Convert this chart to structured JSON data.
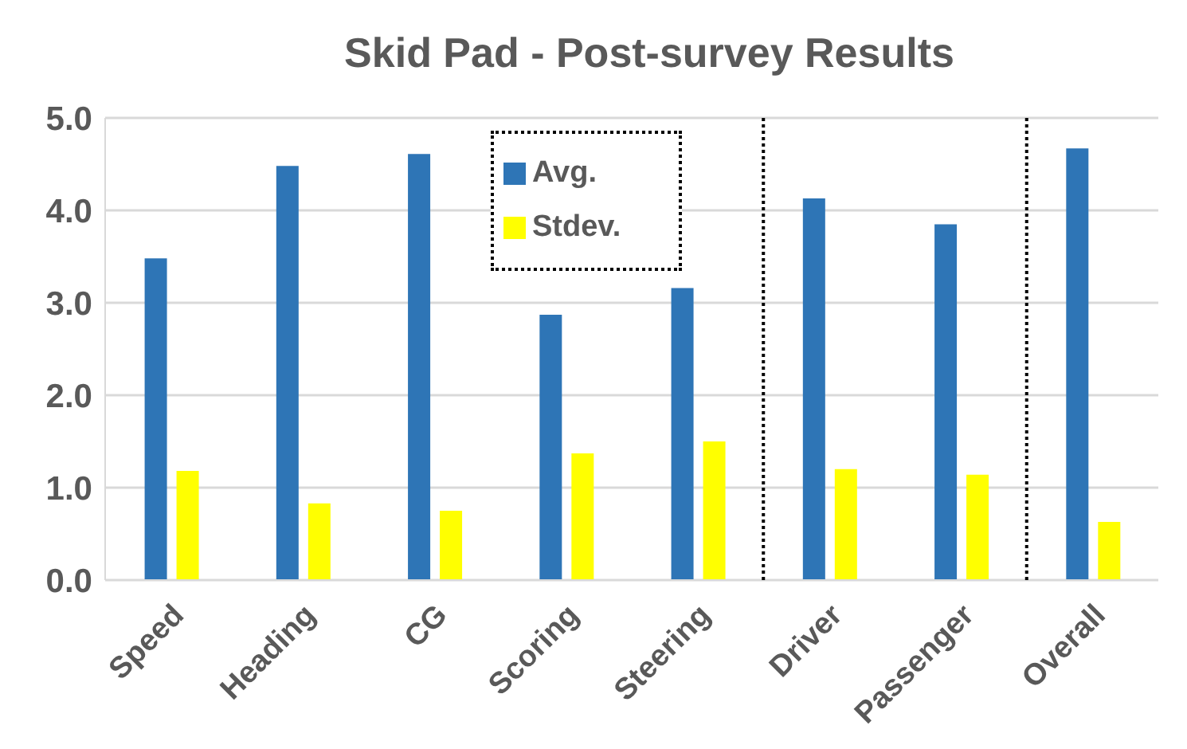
{
  "chart_data": {
    "type": "bar",
    "title": "Skid Pad - Post-survey Results",
    "categories": [
      "Speed",
      "Heading",
      "CG",
      "Scoring",
      "Steering",
      "Driver",
      "Passenger",
      "Overall"
    ],
    "series": [
      {
        "name": "Avg.",
        "color": "#2e75b6",
        "values": [
          3.48,
          4.48,
          4.61,
          2.87,
          3.16,
          4.13,
          3.85,
          4.67
        ]
      },
      {
        "name": "Stdev.",
        "color": "#ffff00",
        "values": [
          1.18,
          0.83,
          0.75,
          1.37,
          1.5,
          1.2,
          1.14,
          0.63
        ]
      }
    ],
    "ylim": [
      0,
      5
    ],
    "yticks": [
      {
        "value": 0,
        "label": "0.0"
      },
      {
        "value": 1,
        "label": "1.0"
      },
      {
        "value": 2,
        "label": "2.0"
      },
      {
        "value": 3,
        "label": "3.0"
      },
      {
        "value": 4,
        "label": "4.0"
      },
      {
        "value": 5,
        "label": "5.0"
      }
    ],
    "grid": "y",
    "legend": "top"
  }
}
